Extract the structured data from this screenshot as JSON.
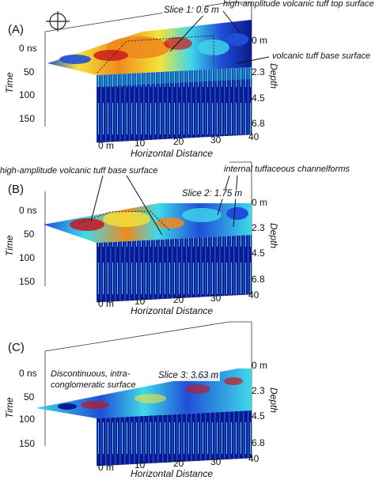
{
  "compass_icon": "compass-crosshair-icon",
  "colors": {
    "deep": "#0a1a8c",
    "blue": "#1f4fd8",
    "cyan": "#3fd9e8",
    "green": "#7be07b",
    "yellow": "#f4e33a",
    "orange": "#f08a1c",
    "red": "#c8141e",
    "box": "#333333"
  },
  "panels": [
    {
      "id": "(A)",
      "slice": "Slice 1: 0.6 m",
      "time_label": "Time",
      "depth_label": "Depth",
      "x_label": "Horizontal Distance",
      "time_ticks": [
        "0 ns",
        "50",
        "100",
        "150"
      ],
      "depth_ticks": [
        "0 m",
        "2.3",
        "4.5",
        "6.8"
      ],
      "x_ticks": [
        "0 m",
        "10",
        "20",
        "30",
        "40"
      ],
      "annotations": [
        "high-amplitude volcanic tuff top surface",
        "volcanic tuff base surface"
      ]
    },
    {
      "id": "(B)",
      "slice": "Slice 2: 1.75 m",
      "time_label": "Time",
      "depth_label": "Depth",
      "x_label": "Horizontal Distance",
      "time_ticks": [
        "0 ns",
        "50",
        "100",
        "150"
      ],
      "depth_ticks": [
        "0 m",
        "2.3",
        "4.5",
        "6.8"
      ],
      "x_ticks": [
        "0 m",
        "10",
        "20",
        "30",
        "40"
      ],
      "annotations": [
        "high-amplitude volcanic tuff base surface",
        "internal tuffaceous channelforms"
      ]
    },
    {
      "id": "(C)",
      "slice": "Slice 3: 3.63 m",
      "time_label": "Time",
      "depth_label": "Depth",
      "x_label": "Horizontal Distance",
      "time_ticks": [
        "0 ns",
        "50",
        "100",
        "150"
      ],
      "depth_ticks": [
        "0 m",
        "2.3",
        "4.5",
        "6.8"
      ],
      "x_ticks": [
        "0 m",
        "10",
        "20",
        "30",
        "40"
      ],
      "annotations": [
        "Discontinuous, intra-",
        "conglomeratic surface"
      ]
    }
  ]
}
